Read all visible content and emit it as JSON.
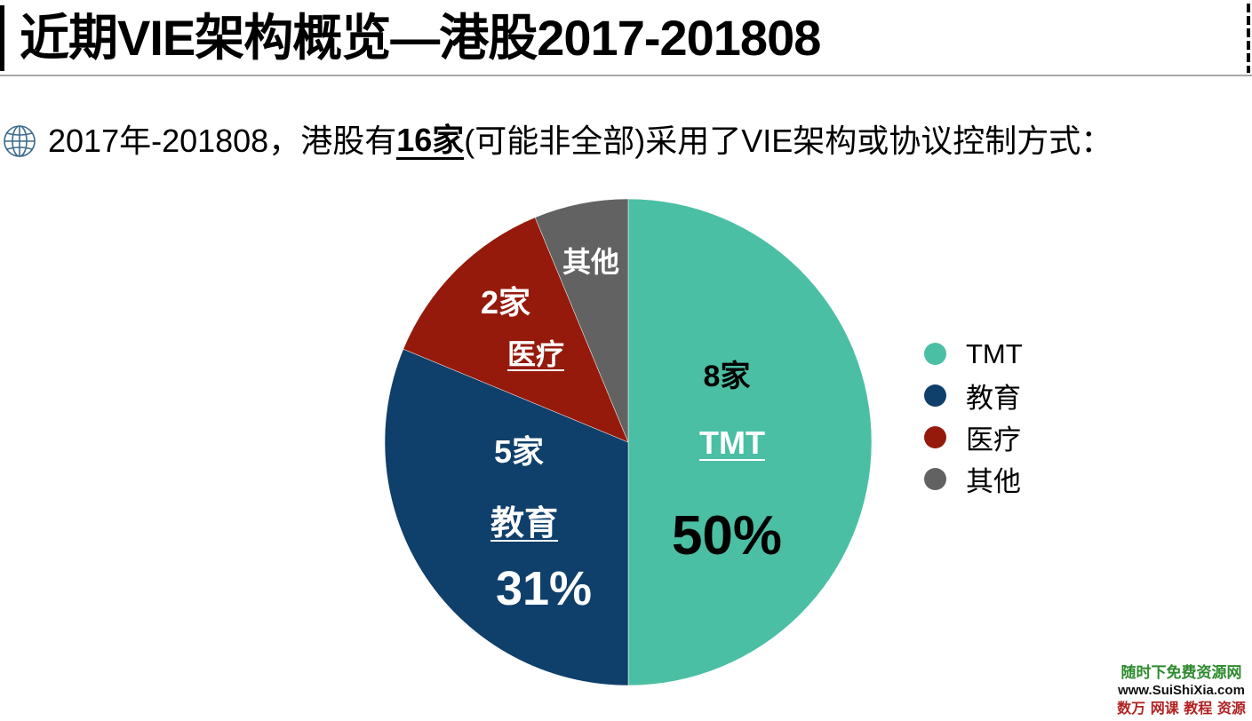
{
  "header": {
    "title": "近期VIE架构概览—港股2017-201808"
  },
  "subtitle": {
    "icon": "globe-icon",
    "prefix": "2017年-201808，港股有",
    "highlight": "16家",
    "suffix": "(可能非全部)采用了VIE架构或协议控制方式："
  },
  "chart_data": {
    "type": "pie",
    "title": "港股2017-201808 VIE架构行业分布",
    "total_companies": 16,
    "categories": [
      "TMT",
      "教育",
      "医疗",
      "其他"
    ],
    "values": [
      8,
      5,
      2,
      1
    ],
    "percentages": [
      50,
      31.25,
      12.5,
      6.25
    ],
    "colors": [
      "#4bbfa3",
      "#0f3f6b",
      "#951a0c",
      "#626262"
    ],
    "slice_labels": [
      {
        "category": "TMT",
        "count_label": "8家",
        "name_label": "TMT",
        "pct_label": "50%"
      },
      {
        "category": "教育",
        "count_label": "5家",
        "name_label": "教育",
        "pct_label": "31%"
      },
      {
        "category": "医疗",
        "count_label": "2家",
        "name_label": "医疗",
        "pct_label": ""
      },
      {
        "category": "其他",
        "count_label": "",
        "name_label": "其他",
        "pct_label": ""
      }
    ],
    "legend": [
      "TMT",
      "教育",
      "医疗",
      "其他"
    ],
    "legend_position": "right",
    "start_angle_deg": 0,
    "direction": "clockwise"
  },
  "legend": {
    "items": [
      {
        "label": "TMT",
        "color": "#4bbfa3"
      },
      {
        "label": "教育",
        "color": "#0f3f6b"
      },
      {
        "label": "医疗",
        "color": "#951a0c"
      },
      {
        "label": "其他",
        "color": "#626262"
      }
    ]
  },
  "watermark": {
    "line1": "随时下免费资源网",
    "line2": "www.SuiShiXia.com",
    "line3": "数万 网课 教程 资源"
  }
}
